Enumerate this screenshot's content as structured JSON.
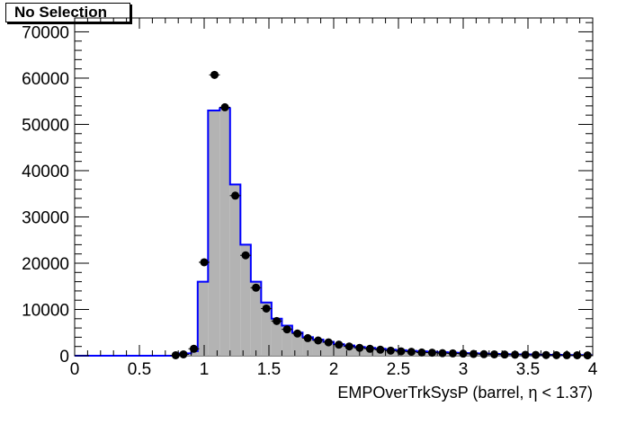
{
  "title_box": {
    "label": "No Selection"
  },
  "chart_data": {
    "type": "bar",
    "title": "No Selection",
    "xlabel": "EMPOverTrkSysP (barrel,   η < 1.37)",
    "ylabel": "",
    "xlim": [
      0,
      4
    ],
    "ylim": [
      0,
      73000
    ],
    "grid": false,
    "x_ticks": [
      {
        "value": 0,
        "label": "0"
      },
      {
        "value": 0.5,
        "label": "0.5"
      },
      {
        "value": 1,
        "label": "1"
      },
      {
        "value": 1.5,
        "label": "1.5"
      },
      {
        "value": 2,
        "label": "2"
      },
      {
        "value": 2.5,
        "label": "2.5"
      },
      {
        "value": 3,
        "label": "3"
      },
      {
        "value": 3.5,
        "label": "3.5"
      },
      {
        "value": 4,
        "label": "4"
      }
    ],
    "y_ticks": [
      {
        "value": 0,
        "label": "0"
      },
      {
        "value": 10000,
        "label": "10000"
      },
      {
        "value": 20000,
        "label": "20000"
      },
      {
        "value": 30000,
        "label": "30000"
      },
      {
        "value": 40000,
        "label": "40000"
      },
      {
        "value": 50000,
        "label": "50000"
      },
      {
        "value": 60000,
        "label": "60000"
      },
      {
        "value": 70000,
        "label": "70000"
      }
    ],
    "bin_edges": [
      0,
      0.1,
      0.2,
      0.3,
      0.4,
      0.5,
      0.6,
      0.7,
      0.8,
      0.9,
      0.95,
      1.03,
      1.12,
      1.2,
      1.28,
      1.36,
      1.44,
      1.52,
      1.6,
      1.68,
      1.76,
      1.84,
      1.92,
      2.0,
      2.08,
      2.16,
      2.24,
      2.32,
      2.4,
      2.48,
      2.56,
      2.64,
      2.72,
      2.8,
      2.88,
      2.96,
      3.04,
      3.12,
      3.2,
      3.28,
      3.36,
      3.44,
      3.52,
      3.6,
      3.68,
      3.76,
      3.84,
      3.92,
      4.0
    ],
    "series": [
      {
        "kind": "histogram",
        "fill": "#b3b3b3",
        "line_color": "#0000ff",
        "values": [
          0,
          0,
          0,
          0,
          0,
          0,
          0,
          0,
          500,
          1000,
          16000,
          53000,
          53500,
          37000,
          24000,
          16000,
          11500,
          8000,
          6500,
          5000,
          4000,
          3500,
          3000,
          2500,
          2200,
          1900,
          1700,
          1500,
          1300,
          1200,
          1050,
          950,
          850,
          750,
          650,
          550,
          500,
          450,
          400,
          350,
          300,
          300,
          250,
          200,
          200,
          150,
          150,
          100
        ]
      },
      {
        "kind": "points",
        "marker_color": "#000000",
        "x": [
          0.78,
          0.84,
          0.92,
          1.0,
          1.08,
          1.16,
          1.24,
          1.32,
          1.4,
          1.48,
          1.56,
          1.64,
          1.72,
          1.8,
          1.88,
          1.96,
          2.04,
          2.12,
          2.2,
          2.28,
          2.36,
          2.44,
          2.52,
          2.6,
          2.68,
          2.76,
          2.84,
          2.92,
          3.0,
          3.08,
          3.16,
          3.24,
          3.32,
          3.4,
          3.48,
          3.56,
          3.64,
          3.72,
          3.8,
          3.88,
          3.96
        ],
        "y": [
          100,
          300,
          1500,
          20200,
          60700,
          53700,
          34600,
          21700,
          14700,
          10200,
          7500,
          5700,
          4800,
          3800,
          3300,
          2900,
          2400,
          2000,
          1700,
          1500,
          1300,
          1100,
          950,
          850,
          700,
          650,
          550,
          500,
          450,
          380,
          330,
          300,
          260,
          230,
          200,
          180,
          150,
          130,
          120,
          100,
          80
        ]
      }
    ]
  }
}
